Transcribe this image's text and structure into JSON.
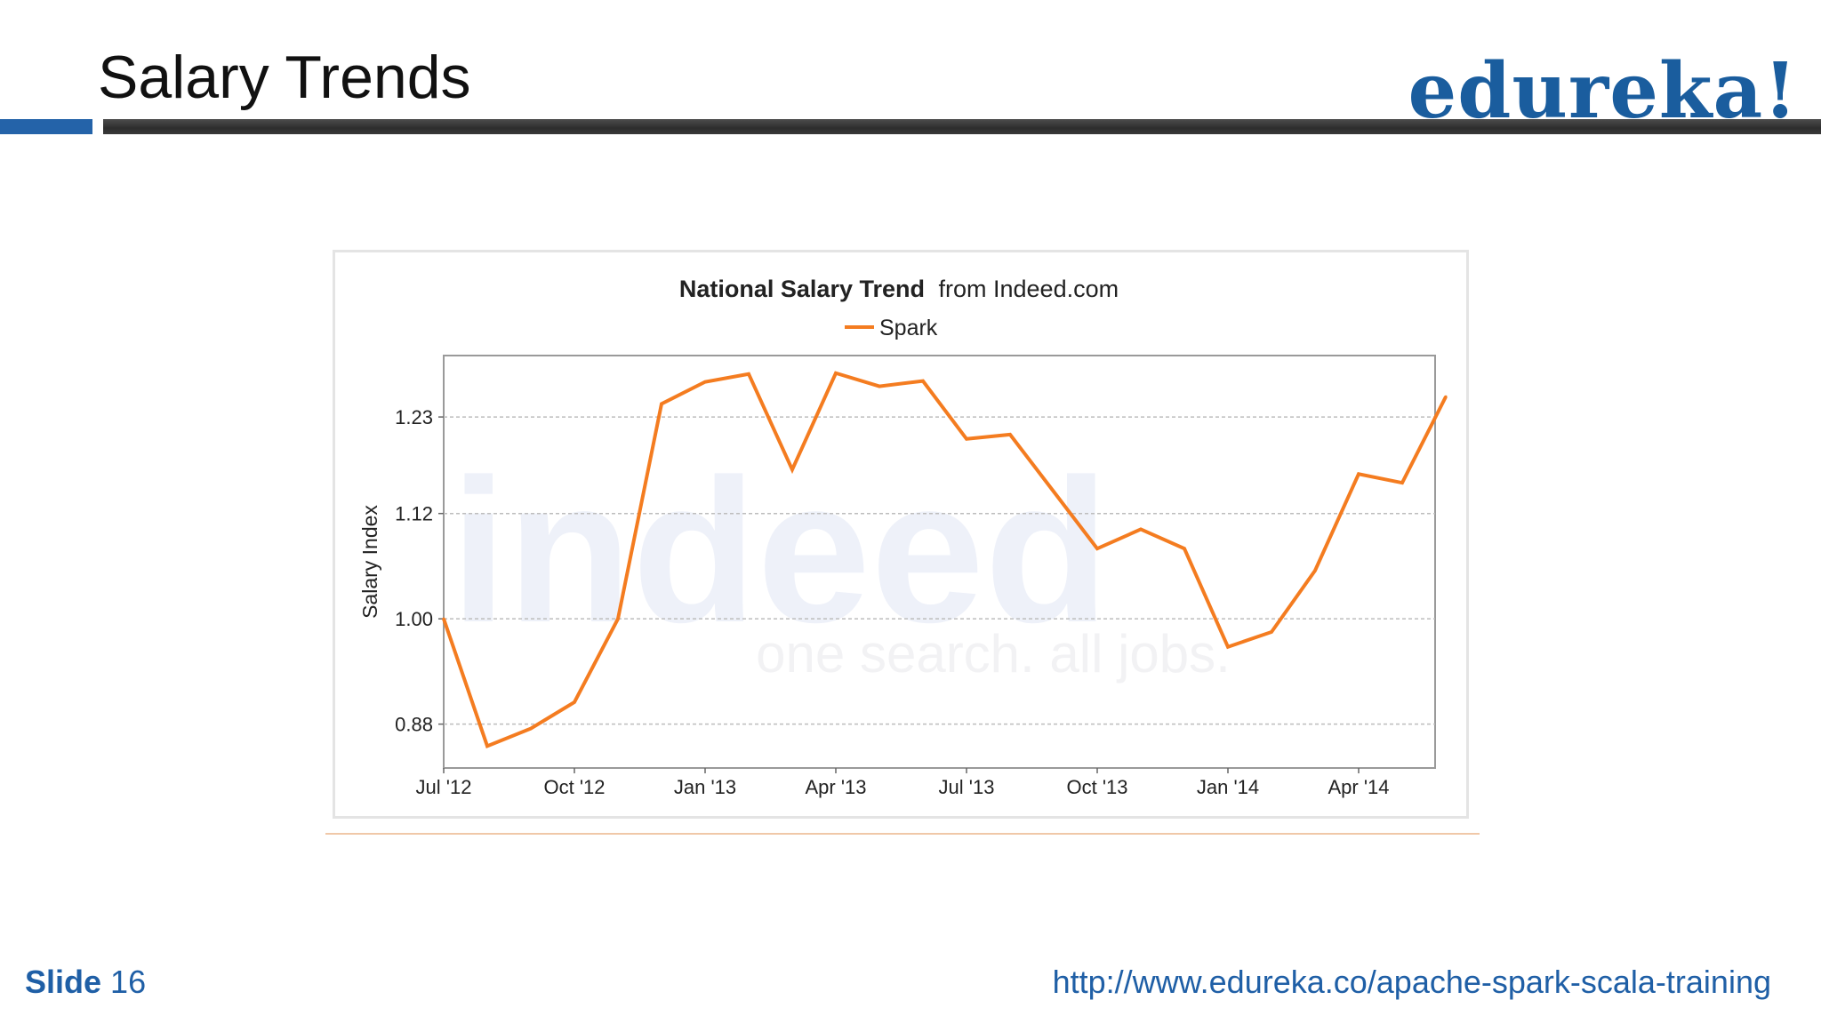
{
  "slide": {
    "title": "Salary Trends",
    "logo_text": "edureka!",
    "footer_label": "Slide",
    "footer_number": "16",
    "footer_url": "http://www.edureka.co/apache-spark-scala-training"
  },
  "colors": {
    "brand_blue": "#1a5d9e",
    "series_orange": "#f47c20",
    "header_bar_dark": "#3a3a3a"
  },
  "chart_data": {
    "type": "line",
    "title_bold": "National Salary Trend",
    "title_rest": "from Indeed.com",
    "ylabel": "Salary Index",
    "xlabel": "",
    "ylim": [
      0.83,
      1.3
    ],
    "yticks": [
      "1.23",
      "1.12",
      "1.00",
      "0.88"
    ],
    "ytick_values": [
      1.23,
      1.12,
      1.0,
      0.88
    ],
    "xticks": [
      "Jul '12",
      "Oct '12",
      "Jan '13",
      "Apr '13",
      "Jul '13",
      "Oct '13",
      "Jan '14",
      "Apr '14"
    ],
    "grid": true,
    "legend_position": "top-center",
    "watermark": [
      "indeed",
      "one search. all jobs."
    ],
    "x": [
      "2012-07",
      "2012-08",
      "2012-09",
      "2012-10",
      "2012-11",
      "2012-12",
      "2013-01",
      "2013-02",
      "2013-03",
      "2013-04",
      "2013-05",
      "2013-06",
      "2013-07",
      "2013-08",
      "2013-09",
      "2013-10",
      "2013-11",
      "2013-12",
      "2014-01",
      "2014-02",
      "2014-03",
      "2014-04",
      "2014-05",
      "2014-06"
    ],
    "series": [
      {
        "name": "Spark",
        "color": "#f47c20",
        "values": [
          1.0,
          0.855,
          0.875,
          0.905,
          1.0,
          1.245,
          1.27,
          1.279,
          1.17,
          1.28,
          1.265,
          1.271,
          1.205,
          1.21,
          1.145,
          1.08,
          1.102,
          1.08,
          0.968,
          0.985,
          1.055,
          1.165,
          1.155,
          1.253
        ]
      }
    ]
  }
}
